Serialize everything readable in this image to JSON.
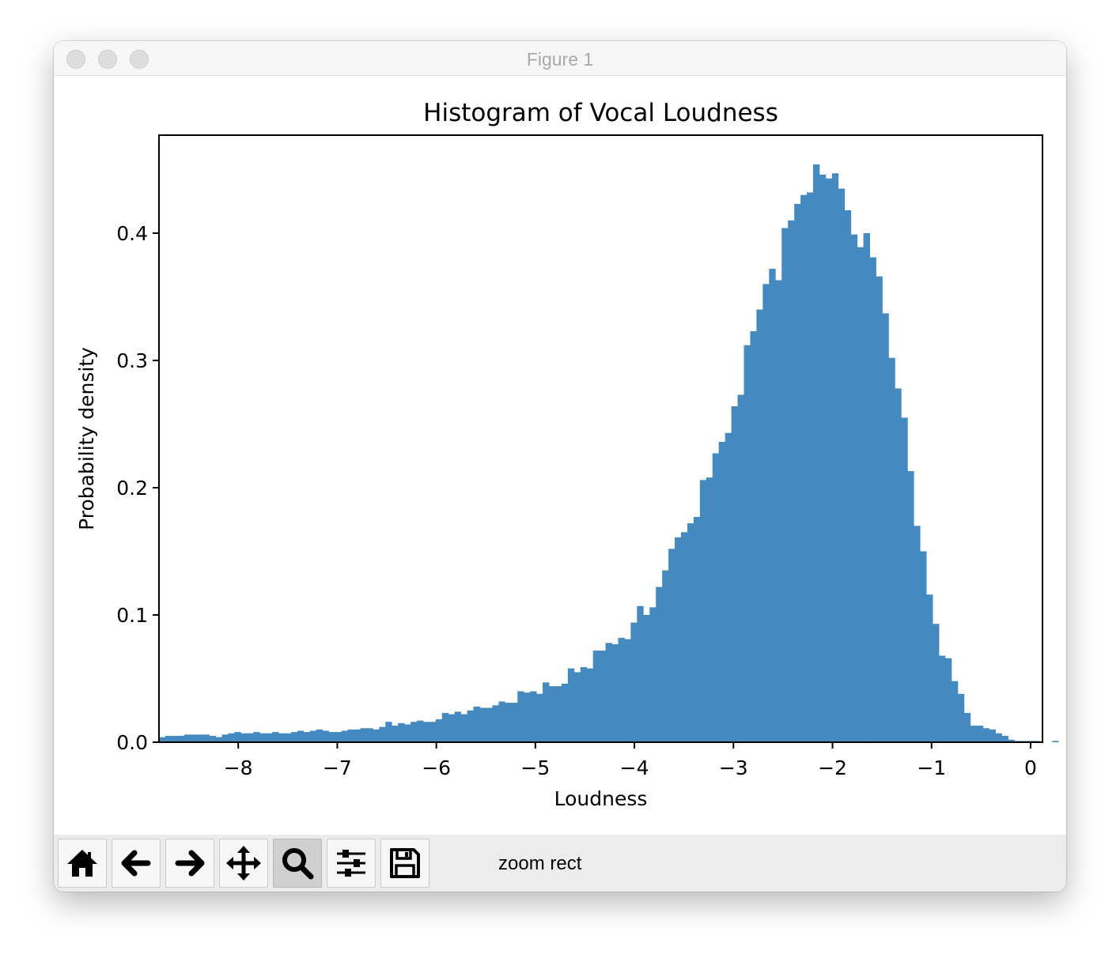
{
  "window": {
    "title": "Figure 1"
  },
  "toolbar": {
    "buttons": [
      {
        "name": "home-button",
        "icon": "home-icon"
      },
      {
        "name": "back-button",
        "icon": "arrow-left-icon"
      },
      {
        "name": "forward-button",
        "icon": "arrow-right-icon"
      },
      {
        "name": "pan-button",
        "icon": "move-icon"
      },
      {
        "name": "zoom-button",
        "icon": "magnifier-icon",
        "active": true
      },
      {
        "name": "configure-subplots-button",
        "icon": "sliders-icon"
      },
      {
        "name": "save-button",
        "icon": "floppy-disk-icon"
      }
    ],
    "status": "zoom rect"
  },
  "chart_data": {
    "type": "bar",
    "title": "Histogram of Vocal Loudness",
    "xlabel": "Loudness",
    "ylabel": "Probability density",
    "xlim": [
      -8.8,
      0.12
    ],
    "ylim": [
      0,
      0.477
    ],
    "xticks": [
      -8,
      -7,
      -6,
      -5,
      -4,
      -3,
      -2,
      -1,
      0
    ],
    "xtick_labels": [
      "−8",
      "−7",
      "−6",
      "−5",
      "−4",
      "−3",
      "−2",
      "−1",
      "0"
    ],
    "yticks": [
      0.0,
      0.1,
      0.2,
      0.3,
      0.4
    ],
    "ytick_labels": [
      "0.0",
      "0.1",
      "0.2",
      "0.3",
      "0.4"
    ],
    "bar_color": "#4489bf",
    "grid": false,
    "legend": false,
    "bin_start": -8.8,
    "bin_width": 0.0635,
    "values": [
      0.004,
      0.005,
      0.005,
      0.005,
      0.006,
      0.006,
      0.006,
      0.006,
      0.005,
      0.004,
      0.006,
      0.007,
      0.008,
      0.007,
      0.007,
      0.008,
      0.007,
      0.007,
      0.008,
      0.007,
      0.007,
      0.008,
      0.009,
      0.008,
      0.009,
      0.01,
      0.009,
      0.008,
      0.008,
      0.009,
      0.01,
      0.01,
      0.011,
      0.011,
      0.01,
      0.012,
      0.016,
      0.013,
      0.015,
      0.014,
      0.016,
      0.017,
      0.016,
      0.016,
      0.018,
      0.023,
      0.022,
      0.024,
      0.022,
      0.025,
      0.028,
      0.027,
      0.027,
      0.029,
      0.032,
      0.031,
      0.031,
      0.04,
      0.039,
      0.04,
      0.038,
      0.047,
      0.044,
      0.044,
      0.046,
      0.058,
      0.055,
      0.059,
      0.058,
      0.072,
      0.072,
      0.078,
      0.077,
      0.082,
      0.081,
      0.094,
      0.107,
      0.1,
      0.106,
      0.122,
      0.135,
      0.152,
      0.161,
      0.165,
      0.172,
      0.177,
      0.206,
      0.208,
      0.227,
      0.236,
      0.243,
      0.264,
      0.273,
      0.312,
      0.323,
      0.34,
      0.36,
      0.372,
      0.363,
      0.404,
      0.41,
      0.423,
      0.43,
      0.432,
      0.454,
      0.446,
      0.443,
      0.447,
      0.435,
      0.418,
      0.399,
      0.389,
      0.4,
      0.381,
      0.366,
      0.337,
      0.302,
      0.278,
      0.255,
      0.213,
      0.17,
      0.15,
      0.116,
      0.093,
      0.068,
      0.066,
      0.048,
      0.038,
      0.023,
      0.013,
      0.013,
      0.011,
      0.01,
      0.007,
      0.005,
      0.002,
      0.001,
      0.001,
      0.001,
      0.001,
      0.0,
      0.0,
      0.001,
      0.0,
      0.0
    ]
  }
}
